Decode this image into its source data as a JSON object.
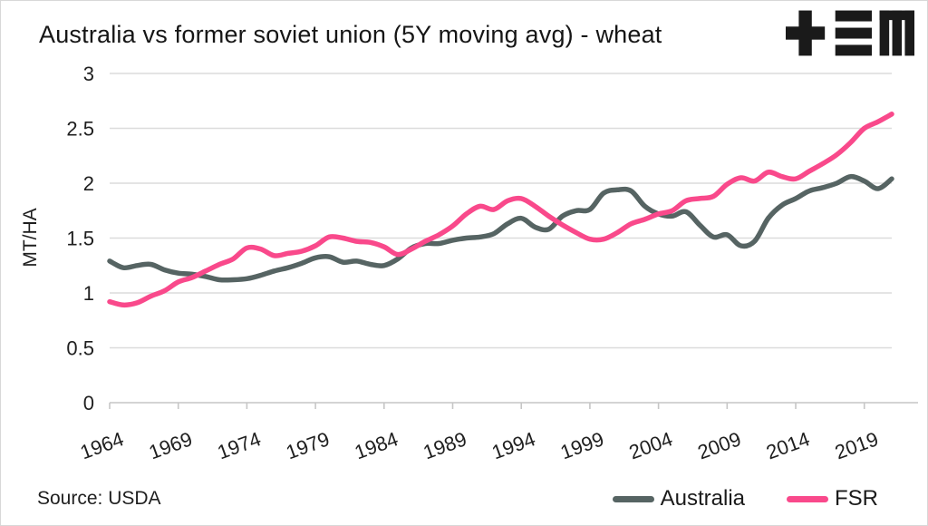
{
  "header": {
    "title": "Australia vs former soviet union (5Y moving avg) - wheat",
    "logo_name": "tem-logo"
  },
  "footer": {
    "source": "Source: USDA"
  },
  "legend": [
    {
      "label": "Australia",
      "color": "#566463"
    },
    {
      "label": "FSR",
      "color": "#f9498b"
    }
  ],
  "colors": {
    "australia_line": "#566463",
    "fsr_line": "#f9498b",
    "gridline": "#dcdcdc",
    "axis": "#c6c6c6",
    "text": "#1f1f1f",
    "logo": "#1a1a1a",
    "background": "#ffffff"
  },
  "chart_data": {
    "type": "line",
    "title": "Australia vs former soviet union (5Y moving avg) - wheat",
    "xlabel": "",
    "ylabel": "MT/HA",
    "ylim": [
      0,
      3
    ],
    "xlim": [
      1964,
      2021
    ],
    "y_ticks": [
      0,
      0.5,
      1,
      1.5,
      2,
      2.5,
      3
    ],
    "x_ticks": [
      1964,
      1969,
      1974,
      1979,
      1984,
      1989,
      1994,
      1999,
      2004,
      2009,
      2014,
      2019
    ],
    "grid": true,
    "legend_position": "bottom-right",
    "source": "USDA",
    "years": [
      1964,
      1965,
      1966,
      1967,
      1968,
      1969,
      1970,
      1971,
      1972,
      1973,
      1974,
      1975,
      1976,
      1977,
      1978,
      1979,
      1980,
      1981,
      1982,
      1983,
      1984,
      1985,
      1986,
      1987,
      1988,
      1989,
      1990,
      1991,
      1992,
      1993,
      1994,
      1995,
      1996,
      1997,
      1998,
      1999,
      2000,
      2001,
      2002,
      2003,
      2004,
      2005,
      2006,
      2007,
      2008,
      2009,
      2010,
      2011,
      2012,
      2013,
      2014,
      2015,
      2016,
      2017,
      2018,
      2019,
      2020,
      2021
    ],
    "series": [
      {
        "name": "Australia",
        "color": "#566463",
        "values": [
          1.29,
          1.23,
          1.25,
          1.26,
          1.21,
          1.18,
          1.17,
          1.15,
          1.12,
          1.12,
          1.13,
          1.16,
          1.2,
          1.23,
          1.27,
          1.32,
          1.33,
          1.28,
          1.29,
          1.26,
          1.25,
          1.31,
          1.41,
          1.45,
          1.45,
          1.48,
          1.5,
          1.51,
          1.54,
          1.63,
          1.68,
          1.6,
          1.58,
          1.7,
          1.75,
          1.76,
          1.91,
          1.94,
          1.93,
          1.79,
          1.72,
          1.7,
          1.74,
          1.62,
          1.51,
          1.53,
          1.43,
          1.47,
          1.68,
          1.8,
          1.86,
          1.93,
          1.96,
          2.0,
          2.06,
          2.02,
          1.95,
          2.04
        ]
      },
      {
        "name": "FSR",
        "color": "#f9498b",
        "values": [
          0.92,
          0.89,
          0.91,
          0.97,
          1.02,
          1.1,
          1.14,
          1.2,
          1.26,
          1.31,
          1.41,
          1.4,
          1.34,
          1.36,
          1.38,
          1.43,
          1.51,
          1.5,
          1.47,
          1.46,
          1.42,
          1.35,
          1.4,
          1.47,
          1.53,
          1.61,
          1.72,
          1.79,
          1.76,
          1.84,
          1.86,
          1.79,
          1.7,
          1.62,
          1.55,
          1.49,
          1.49,
          1.55,
          1.63,
          1.67,
          1.72,
          1.75,
          1.84,
          1.86,
          1.88,
          1.99,
          2.05,
          2.02,
          2.1,
          2.06,
          2.04,
          2.11,
          2.18,
          2.26,
          2.37,
          2.5,
          2.56,
          2.63
        ]
      }
    ]
  }
}
